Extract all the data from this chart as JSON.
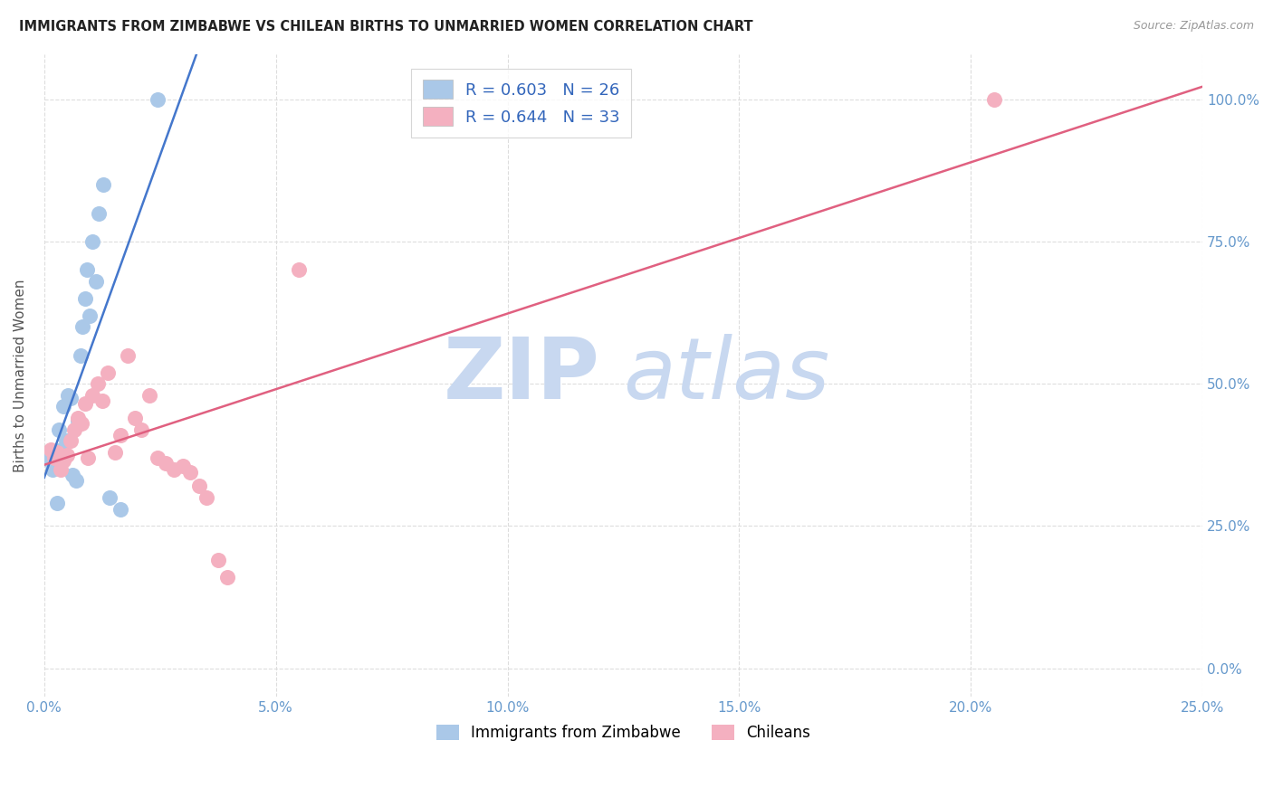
{
  "title": "IMMIGRANTS FROM ZIMBABWE VS CHILEAN BIRTHS TO UNMARRIED WOMEN CORRELATION CHART",
  "source": "Source: ZipAtlas.com",
  "ylabel": "Births to Unmarried Women",
  "legend_blue_label": "R = 0.603   N = 26",
  "legend_pink_label": "R = 0.644   N = 33",
  "legend_label1": "Immigrants from Zimbabwe",
  "legend_label2": "Chileans",
  "blue_color": "#aac8e8",
  "blue_line_color": "#4477cc",
  "pink_color": "#f4b0c0",
  "pink_line_color": "#e06080",
  "blue_scatter_x": [
    0.08,
    0.12,
    0.18,
    0.22,
    0.28,
    0.32,
    0.38,
    0.42,
    0.48,
    0.52,
    0.58,
    0.62,
    0.68,
    0.72,
    0.78,
    0.82,
    0.88,
    0.92,
    0.98,
    1.05,
    1.12,
    1.18,
    1.28,
    1.42,
    1.65,
    2.45
  ],
  "blue_scatter_y": [
    38.0,
    36.5,
    35.0,
    37.5,
    29.0,
    42.0,
    38.5,
    46.0,
    40.0,
    48.0,
    47.5,
    34.0,
    33.0,
    43.5,
    55.0,
    60.0,
    65.0,
    70.0,
    62.0,
    75.0,
    68.0,
    80.0,
    85.0,
    30.0,
    28.0,
    100.0
  ],
  "pink_scatter_x": [
    0.15,
    0.22,
    0.28,
    0.35,
    0.42,
    0.5,
    0.58,
    0.65,
    0.72,
    0.8,
    0.88,
    0.95,
    1.05,
    1.15,
    1.25,
    1.38,
    1.52,
    1.65,
    1.8,
    1.95,
    2.1,
    2.28,
    2.45,
    2.62,
    2.8,
    3.0,
    3.15,
    3.35,
    3.5,
    3.75,
    3.95,
    5.5,
    20.5
  ],
  "pink_scatter_y": [
    38.5,
    37.0,
    38.0,
    35.0,
    36.5,
    37.5,
    40.0,
    42.0,
    44.0,
    43.0,
    46.5,
    37.0,
    48.0,
    50.0,
    47.0,
    52.0,
    38.0,
    41.0,
    55.0,
    44.0,
    42.0,
    48.0,
    37.0,
    36.0,
    35.0,
    35.5,
    34.5,
    32.0,
    30.0,
    19.0,
    16.0,
    70.0,
    100.0
  ],
  "xlim": [
    0.0,
    25.0
  ],
  "ylim": [
    -5.0,
    108.0
  ],
  "xtick_vals": [
    0,
    5,
    10,
    15,
    20,
    25
  ],
  "xtick_labels": [
    "0.0%",
    "5.0%",
    "10.0%",
    "15.0%",
    "20.0%",
    "25.0%"
  ],
  "ytick_vals": [
    0,
    25,
    50,
    75,
    100
  ],
  "ytick_labels_right": [
    "0.0%",
    "25.0%",
    "50.0%",
    "75.0%",
    "100.0%"
  ],
  "watermark_zip": "ZIP",
  "watermark_atlas": "atlas",
  "watermark_color_zip": "#c8d8f0",
  "watermark_color_atlas": "#c8d8f0",
  "background_color": "#ffffff",
  "grid_color": "#dddddd"
}
